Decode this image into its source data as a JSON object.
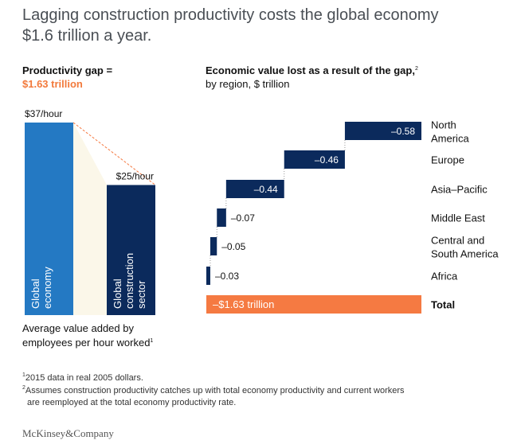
{
  "title_line1": "Lagging construction productivity costs the global economy",
  "title_line2": "$1.6 trillion a year.",
  "left_heading": "Productivity gap =",
  "left_value": "$1.63 trillion",
  "right_heading": "Economic value lost as a result of the gap,",
  "right_heading_sup": "2",
  "right_subheading": "by region, $ trillion",
  "caption_line1": "Average value added by",
  "caption_line2": "employees per hour worked",
  "caption_sup": "1",
  "footnotes": [
    {
      "mark": "1",
      "text": "2015 data in real 2005 dollars."
    },
    {
      "mark": "2",
      "text": "Assumes construction productivity catches up with total economy productivity and current workers"
    },
    {
      "mark": "",
      "text": "are reemployed at the total economy productivity rate."
    }
  ],
  "brand": "McKinsey&Company",
  "colors": {
    "light_blue": "#2479c3",
    "navy": "#0b2a5c",
    "orange": "#f57a42",
    "cream": "#fbf7e9"
  },
  "chart_data": [
    {
      "type": "bar",
      "categories": [
        "Global economy",
        "Global construction sector"
      ],
      "values": [
        37,
        25
      ],
      "data_labels": [
        "$37/hour",
        "$25/hour"
      ],
      "unit": "$/hour",
      "colors": [
        "#2479c3",
        "#0b2a5c"
      ]
    },
    {
      "type": "bar",
      "orientation": "horizontal-waterfall",
      "categories": [
        "North America",
        "Europe",
        "Asia–Pacific",
        "Middle East",
        "Central and South America",
        "Africa",
        "Total"
      ],
      "category_lines": [
        [
          "North",
          "America"
        ],
        [
          "Europe"
        ],
        [
          "Asia–Pacific"
        ],
        [
          "Middle East"
        ],
        [
          "Central and",
          "South America"
        ],
        [
          "Africa"
        ],
        [
          "Total"
        ]
      ],
      "values": [
        -0.58,
        -0.46,
        -0.44,
        -0.07,
        -0.05,
        -0.03,
        -1.63
      ],
      "data_labels": [
        "–0.58",
        "–0.46",
        "–0.44",
        "–0.07",
        "–0.05",
        "–0.03",
        "–$1.63 trillion"
      ],
      "unit": "$ trillion"
    }
  ]
}
